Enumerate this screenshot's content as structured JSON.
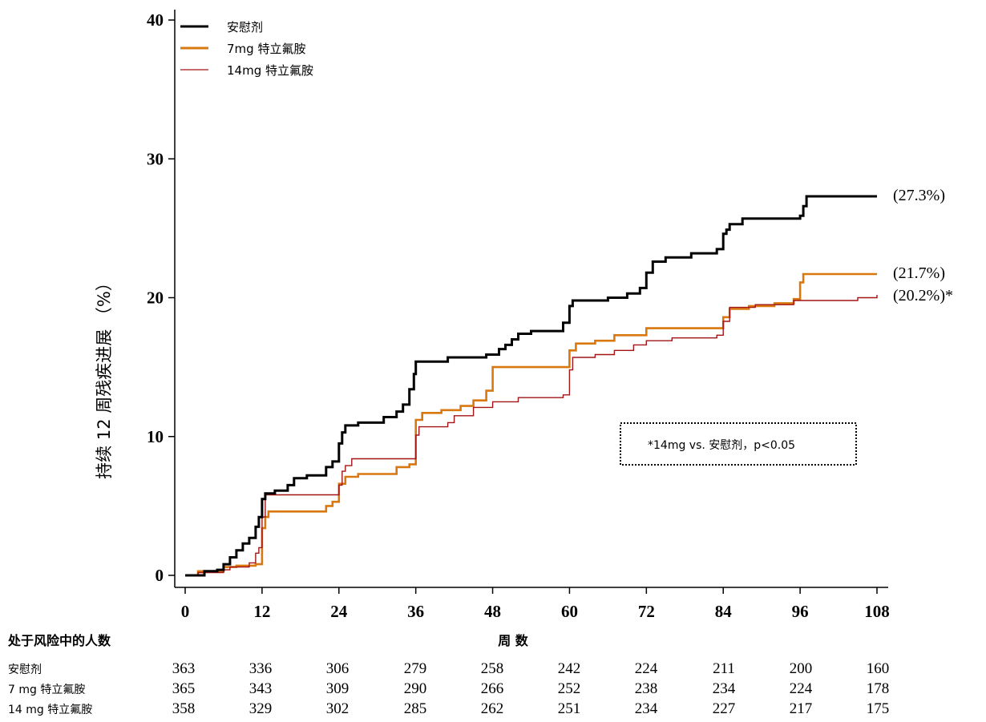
{
  "chart_data": {
    "type": "line",
    "title": "",
    "xlabel": "周 数",
    "ylabel": "持续 12 周残疾进展 （%）",
    "xlim": [
      0,
      108
    ],
    "ylim": [
      0,
      40
    ],
    "x_ticks": [
      "0",
      "12",
      "24",
      "36",
      "48",
      "60",
      "72",
      "84",
      "96",
      "108"
    ],
    "y_ticks": [
      "0",
      "10",
      "20",
      "30",
      "40"
    ],
    "grid": false,
    "legend_position": "top-left",
    "colors": {
      "placebo": "#000000",
      "teri7": "#d9780f",
      "teri14": "#a31414"
    },
    "series": [
      {
        "name": "安慰剂",
        "end_label": "(27.3%)",
        "points": [
          [
            0,
            0
          ],
          [
            1,
            0
          ],
          [
            3,
            0.3
          ],
          [
            5,
            0.4
          ],
          [
            6,
            0.8
          ],
          [
            7,
            1.3
          ],
          [
            8,
            1.8
          ],
          [
            9,
            2.3
          ],
          [
            10,
            2.7
          ],
          [
            11,
            3.5
          ],
          [
            11.5,
            4.2
          ],
          [
            12,
            5.5
          ],
          [
            12.5,
            5.9
          ],
          [
            14,
            6.1
          ],
          [
            16,
            6.5
          ],
          [
            17,
            7
          ],
          [
            19,
            7.2
          ],
          [
            22,
            7.8
          ],
          [
            23,
            8.2
          ],
          [
            24,
            9.5
          ],
          [
            24.5,
            10.3
          ],
          [
            25,
            10.8
          ],
          [
            27,
            11
          ],
          [
            31,
            11.4
          ],
          [
            33,
            11.8
          ],
          [
            34,
            12.3
          ],
          [
            35,
            13.4
          ],
          [
            35.7,
            14.5
          ],
          [
            36,
            15.4
          ],
          [
            41,
            15.7
          ],
          [
            47,
            15.9
          ],
          [
            49,
            16.3
          ],
          [
            50,
            16.6
          ],
          [
            51,
            17
          ],
          [
            52,
            17.4
          ],
          [
            54,
            17.6
          ],
          [
            59,
            18.2
          ],
          [
            60,
            19.4
          ],
          [
            60.5,
            19.8
          ],
          [
            66,
            20
          ],
          [
            69,
            20.3
          ],
          [
            71,
            20.7
          ],
          [
            72,
            21.8
          ],
          [
            73,
            22.6
          ],
          [
            75,
            22.9
          ],
          [
            79,
            23.2
          ],
          [
            83,
            23.5
          ],
          [
            84,
            24.6
          ],
          [
            84.5,
            24.9
          ],
          [
            85,
            25.3
          ],
          [
            87,
            25.7
          ],
          [
            96,
            25.9
          ],
          [
            96.5,
            26.6
          ],
          [
            97,
            27.3
          ],
          [
            108,
            27.3
          ]
        ]
      },
      {
        "name": "7mg 特立氟胺",
        "end_label": "(21.7%)",
        "points": [
          [
            0,
            0
          ],
          [
            2,
            0.3
          ],
          [
            6,
            0.6
          ],
          [
            8,
            0.7
          ],
          [
            11,
            0.8
          ],
          [
            12,
            3.4
          ],
          [
            12.5,
            4.2
          ],
          [
            13,
            4.6
          ],
          [
            22,
            5
          ],
          [
            23,
            5.3
          ],
          [
            24,
            6.6
          ],
          [
            25,
            7.1
          ],
          [
            27,
            7.3
          ],
          [
            33,
            7.8
          ],
          [
            35,
            8
          ],
          [
            36,
            11.2
          ],
          [
            37,
            11.7
          ],
          [
            40,
            11.9
          ],
          [
            43,
            12.2
          ],
          [
            45,
            12.6
          ],
          [
            47,
            13.3
          ],
          [
            48,
            15
          ],
          [
            60,
            16.2
          ],
          [
            61,
            16.7
          ],
          [
            64,
            16.9
          ],
          [
            67,
            17.3
          ],
          [
            72,
            17.8
          ],
          [
            84,
            18.6
          ],
          [
            85,
            19.2
          ],
          [
            88,
            19.4
          ],
          [
            92,
            19.6
          ],
          [
            95,
            19.9
          ],
          [
            96,
            21.1
          ],
          [
            96.5,
            21.7
          ],
          [
            108,
            21.7
          ]
        ]
      },
      {
        "name": "14mg 特立氟胺",
        "end_label": "(20.2%)*",
        "points": [
          [
            0,
            0
          ],
          [
            2,
            0.2
          ],
          [
            6,
            0.4
          ],
          [
            7,
            0.6
          ],
          [
            10,
            0.9
          ],
          [
            11,
            1.6
          ],
          [
            11.5,
            2
          ],
          [
            12,
            4.2
          ],
          [
            12.5,
            5.8
          ],
          [
            24,
            6.5
          ],
          [
            24.5,
            7.5
          ],
          [
            25,
            7.9
          ],
          [
            26,
            8.4
          ],
          [
            36,
            10.1
          ],
          [
            36.5,
            10.7
          ],
          [
            41,
            11
          ],
          [
            42,
            11.5
          ],
          [
            45,
            12.1
          ],
          [
            48,
            12.5
          ],
          [
            52,
            12.8
          ],
          [
            59,
            13
          ],
          [
            60,
            14.8
          ],
          [
            60.5,
            15.7
          ],
          [
            64,
            15.9
          ],
          [
            67,
            16.2
          ],
          [
            70,
            16.6
          ],
          [
            72,
            16.9
          ],
          [
            76,
            17.1
          ],
          [
            83,
            17.3
          ],
          [
            84,
            18.3
          ],
          [
            85,
            19.3
          ],
          [
            89,
            19.5
          ],
          [
            95,
            19.8
          ],
          [
            105,
            20
          ],
          [
            108,
            20.2
          ]
        ]
      }
    ],
    "annotation": "*14mg vs. 安慰剂，p<0.05"
  },
  "risk_table": {
    "title": "处于风险中的人数",
    "rows": [
      {
        "label": "安慰剂",
        "values": [
          "363",
          "336",
          "306",
          "279",
          "258",
          "242",
          "224",
          "211",
          "200",
          "160"
        ]
      },
      {
        "label": "7 mg  特立氟胺",
        "values": [
          "365",
          "343",
          "309",
          "290",
          "266",
          "252",
          "238",
          "234",
          "224",
          "178"
        ]
      },
      {
        "label": "14 mg  特立氟胺",
        "values": [
          "358",
          "329",
          "302",
          "285",
          "262",
          "251",
          "234",
          "227",
          "217",
          "175"
        ]
      }
    ]
  }
}
